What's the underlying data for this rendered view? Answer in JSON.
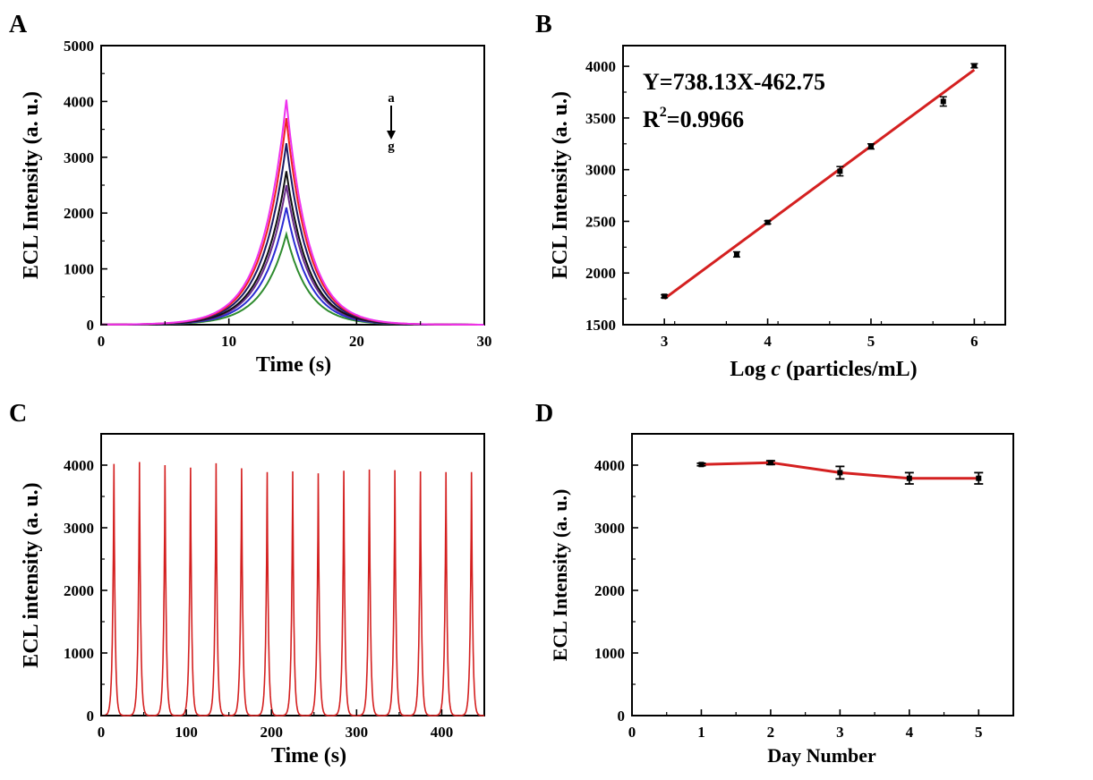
{
  "panels": {
    "A": {
      "label": "A"
    },
    "B": {
      "label": "B"
    },
    "C": {
      "label": "C"
    },
    "D": {
      "label": "D"
    }
  },
  "chart_data": [
    {
      "panel": "A",
      "type": "line",
      "xlabel": "Time (s)",
      "ylabel": "ECL Intensity (a. u.)",
      "xlim": [
        0,
        30
      ],
      "ylim": [
        0,
        5000
      ],
      "xticks": [
        0,
        10,
        20,
        30
      ],
      "yticks": [
        0,
        1000,
        2000,
        3000,
        4000,
        5000
      ],
      "annotation": {
        "top": "a",
        "bottom": "g"
      },
      "peak_time": 14.5,
      "series": [
        {
          "peak": 4030,
          "color": "#ee33ee"
        },
        {
          "peak": 3700,
          "color": "#ee2222"
        },
        {
          "peak": 3250,
          "color": "#1a1a66"
        },
        {
          "peak": 2750,
          "color": "#111111"
        },
        {
          "peak": 2500,
          "color": "#6a2c8c"
        },
        {
          "peak": 2100,
          "color": "#2b2bd4"
        },
        {
          "peak": 1620,
          "color": "#2e8b2e"
        }
      ]
    },
    {
      "panel": "B",
      "type": "scatter",
      "xlabel_parts": [
        "Log ",
        "c",
        " (particles/mL)"
      ],
      "ylabel": "ECL Intensity (a. u.)",
      "xlim": [
        2.6,
        6.3
      ],
      "ylim": [
        1500,
        4200
      ],
      "xticks": [
        3,
        4,
        5,
        6
      ],
      "yticks": [
        1500,
        2000,
        2500,
        3000,
        3500,
        4000
      ],
      "equation": "Y=738.13X-462.75",
      "r2": {
        "prefix": "R",
        "sup": "2",
        "value": "=0.9966"
      },
      "fit": {
        "slope": 738.13,
        "intercept": -462.75,
        "color": "#d42020"
      },
      "points": [
        {
          "x": 3,
          "y": 1775,
          "err": 15
        },
        {
          "x": 3.7,
          "y": 2180,
          "err": 25
        },
        {
          "x": 4,
          "y": 2490,
          "err": 15
        },
        {
          "x": 4.7,
          "y": 2985,
          "err": 45
        },
        {
          "x": 5,
          "y": 3225,
          "err": 25
        },
        {
          "x": 5.7,
          "y": 3660,
          "err": 45
        },
        {
          "x": 6,
          "y": 4005,
          "err": 20
        }
      ]
    },
    {
      "panel": "C",
      "type": "line",
      "xlabel": "Time (s)",
      "ylabel": "ECL intensity (a. u.)",
      "xlim": [
        0,
        450
      ],
      "ylim": [
        0,
        4500
      ],
      "xticks": [
        0,
        100,
        200,
        300,
        400
      ],
      "yticks": [
        0,
        1000,
        2000,
        3000,
        4000
      ],
      "color": "#d42020",
      "peaks": [
        {
          "t": 15,
          "v": 4020
        },
        {
          "t": 45,
          "v": 4050
        },
        {
          "t": 75,
          "v": 4000
        },
        {
          "t": 105,
          "v": 3960
        },
        {
          "t": 135,
          "v": 4030
        },
        {
          "t": 165,
          "v": 3950
        },
        {
          "t": 195,
          "v": 3890
        },
        {
          "t": 225,
          "v": 3900
        },
        {
          "t": 255,
          "v": 3870
        },
        {
          "t": 285,
          "v": 3910
        },
        {
          "t": 315,
          "v": 3930
        },
        {
          "t": 345,
          "v": 3920
        },
        {
          "t": 375,
          "v": 3900
        },
        {
          "t": 405,
          "v": 3890
        },
        {
          "t": 435,
          "v": 3890
        }
      ]
    },
    {
      "panel": "D",
      "type": "line",
      "xlabel": "Day Number",
      "ylabel": "ECL Intensity (a. u.)",
      "xlim": [
        0,
        5.5
      ],
      "ylim": [
        0,
        4500
      ],
      "xticks": [
        0,
        1,
        2,
        3,
        4,
        5
      ],
      "yticks": [
        0,
        1000,
        2000,
        3000,
        4000
      ],
      "color": "#d42020",
      "points": [
        {
          "x": 1,
          "y": 4010,
          "err": 20
        },
        {
          "x": 2,
          "y": 4040,
          "err": 30
        },
        {
          "x": 3,
          "y": 3880,
          "err": 100
        },
        {
          "x": 4,
          "y": 3790,
          "err": 90
        },
        {
          "x": 5,
          "y": 3790,
          "err": 90
        }
      ]
    }
  ]
}
